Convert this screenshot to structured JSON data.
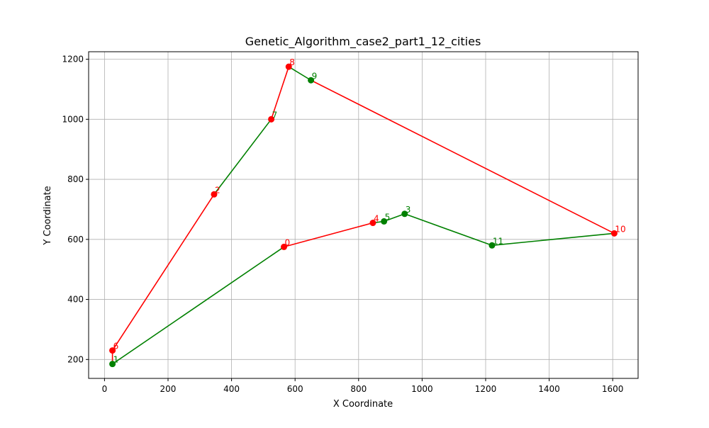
{
  "chart_data": {
    "type": "line",
    "title": "Genetic_Algorithm_case2_part1_12_cities",
    "xlabel": "X Coordinate",
    "ylabel": "Y Coordinate",
    "xlim": [
      -50,
      1680
    ],
    "ylim": [
      137,
      1225
    ],
    "xticks": [
      0,
      200,
      400,
      600,
      800,
      1000,
      1200,
      1400,
      1600
    ],
    "yticks": [
      200,
      400,
      600,
      800,
      1000,
      1200
    ],
    "grid": true,
    "colors": {
      "red": "#ff0000",
      "green": "#008000",
      "axis": "#000000",
      "grid": "#b0b0b0"
    },
    "cities": [
      {
        "id": "0",
        "x": 565,
        "y": 575
      },
      {
        "id": "1",
        "x": 25,
        "y": 185
      },
      {
        "id": "2",
        "x": 345,
        "y": 750
      },
      {
        "id": "3",
        "x": 945,
        "y": 685
      },
      {
        "id": "4",
        "x": 845,
        "y": 655
      },
      {
        "id": "5",
        "x": 880,
        "y": 660
      },
      {
        "id": "6",
        "x": 25,
        "y": 230
      },
      {
        "id": "7",
        "x": 525,
        "y": 1000
      },
      {
        "id": "8",
        "x": 580,
        "y": 1175
      },
      {
        "id": "9",
        "x": 650,
        "y": 1130
      },
      {
        "id": "10",
        "x": 1605,
        "y": 620
      },
      {
        "id": "11",
        "x": 1220,
        "y": 580
      }
    ],
    "segments": [
      {
        "from": "0",
        "to": "4",
        "color": "red"
      },
      {
        "from": "4",
        "to": "5",
        "color": "green"
      },
      {
        "from": "5",
        "to": "3",
        "color": "green"
      },
      {
        "from": "3",
        "to": "11",
        "color": "green"
      },
      {
        "from": "11",
        "to": "10",
        "color": "green"
      },
      {
        "from": "10",
        "to": "9",
        "color": "red"
      },
      {
        "from": "9",
        "to": "8",
        "color": "green"
      },
      {
        "from": "8",
        "to": "7",
        "color": "red"
      },
      {
        "from": "7",
        "to": "2",
        "color": "green"
      },
      {
        "from": "2",
        "to": "6",
        "color": "red"
      },
      {
        "from": "6",
        "to": "1",
        "color": "red"
      },
      {
        "from": "1",
        "to": "0",
        "color": "green"
      }
    ],
    "point_colors": {
      "0": "red",
      "1": "green",
      "2": "red",
      "3": "green",
      "4": "red",
      "5": "green",
      "6": "red",
      "7": "red",
      "8": "red",
      "9": "green",
      "10": "red",
      "11": "green"
    },
    "label_colors": {
      "0": "red",
      "1": "green",
      "2": "red",
      "3": "green",
      "4": "red",
      "5": "green",
      "6": "red",
      "7": "green",
      "8": "red",
      "9": "green",
      "10": "red",
      "11": "green"
    }
  }
}
